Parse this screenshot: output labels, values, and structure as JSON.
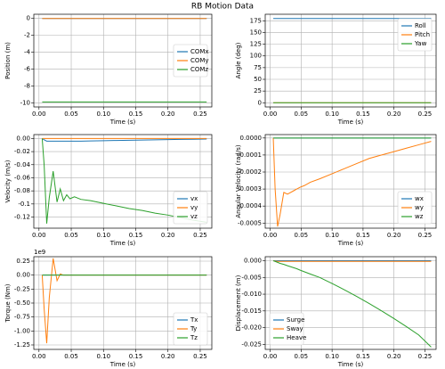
{
  "title": "RB Motion Data",
  "chart_data": [
    {
      "type": "line",
      "ylabel": "Position (m)",
      "xlabel": "Time (s)",
      "legend": "center right",
      "grid": true,
      "xlim": [
        -0.008,
        0.268
      ],
      "xticks": [
        {
          "value": 0,
          "label": "0.00"
        },
        {
          "value": 0.05,
          "label": "0.05"
        },
        {
          "value": 0.1,
          "label": "0.10"
        },
        {
          "value": 0.15,
          "label": "0.15"
        },
        {
          "value": 0.2,
          "label": "0.20"
        },
        {
          "value": 0.25,
          "label": "0.25"
        }
      ],
      "ylim": [
        -10.5,
        0.5
      ],
      "yticks": [
        -10,
        -8,
        -6,
        -4,
        -2,
        0
      ],
      "x": [
        0.005,
        0.008,
        0.012,
        0.016,
        0.022,
        0.028,
        0.033,
        0.038,
        0.043,
        0.048,
        0.055,
        0.065,
        0.08,
        0.1,
        0.12,
        0.14,
        0.16,
        0.18,
        0.2,
        0.22,
        0.24,
        0.26
      ],
      "series": [
        {
          "name": "COMx",
          "color": "#1f77b4",
          "values": [
            0,
            0,
            0,
            0,
            0,
            0,
            0,
            0,
            0,
            0,
            0,
            0,
            0,
            0,
            0,
            0,
            0,
            0,
            0,
            0,
            0,
            0
          ]
        },
        {
          "name": "COMy",
          "color": "#ff7f0e",
          "values": [
            0,
            0,
            0,
            0,
            0,
            0,
            0,
            0,
            0,
            0,
            0,
            0,
            0,
            0,
            0,
            0,
            0,
            0,
            0,
            0,
            0,
            0
          ]
        },
        {
          "name": "COMz",
          "color": "#2ca02c",
          "values": [
            -9.9,
            -9.9,
            -9.9,
            -9.9,
            -9.9,
            -9.9,
            -9.9,
            -9.9,
            -9.9,
            -9.9,
            -9.9,
            -9.9,
            -9.9,
            -9.9,
            -9.9,
            -9.9,
            -9.9,
            -9.9,
            -9.9,
            -9.9,
            -9.9,
            -9.9
          ]
        }
      ]
    },
    {
      "type": "line",
      "ylabel": "Angle (deg)",
      "xlabel": "Time (s)",
      "legend": "upper right",
      "grid": true,
      "xlim": [
        -0.008,
        0.268
      ],
      "xticks": [
        {
          "value": 0,
          "label": "0.00"
        },
        {
          "value": 0.05,
          "label": "0.05"
        },
        {
          "value": 0.1,
          "label": "0.10"
        },
        {
          "value": 0.15,
          "label": "0.15"
        },
        {
          "value": 0.2,
          "label": "0.20"
        },
        {
          "value": 0.25,
          "label": "0.25"
        }
      ],
      "ylim": [
        -9,
        189
      ],
      "yticks": [
        0,
        25,
        50,
        75,
        100,
        125,
        150,
        175
      ],
      "x": [
        0.005,
        0.008,
        0.012,
        0.016,
        0.022,
        0.028,
        0.033,
        0.038,
        0.043,
        0.048,
        0.055,
        0.065,
        0.08,
        0.1,
        0.12,
        0.14,
        0.16,
        0.18,
        0.2,
        0.22,
        0.24,
        0.26
      ],
      "series": [
        {
          "name": "Roll",
          "color": "#1f77b4",
          "values": [
            180,
            180,
            180,
            180,
            180,
            180,
            180,
            180,
            180,
            180,
            180,
            180,
            180,
            180,
            180,
            180,
            180,
            180,
            180,
            180,
            180,
            180
          ]
        },
        {
          "name": "Pitch",
          "color": "#ff7f0e",
          "values": [
            0,
            0,
            0,
            0,
            0,
            0,
            0,
            0,
            0,
            0,
            0,
            0,
            0,
            0,
            0,
            0,
            0,
            0,
            0,
            0,
            0,
            0
          ]
        },
        {
          "name": "Yaw",
          "color": "#2ca02c",
          "values": [
            0,
            0,
            0,
            0,
            0,
            0,
            0,
            0,
            0,
            0,
            0,
            0,
            0,
            0,
            0,
            0,
            0,
            0,
            0,
            0,
            0,
            0
          ]
        }
      ]
    },
    {
      "type": "line",
      "ylabel": "Velocity (m/s)",
      "xlabel": "Time (s)",
      "legend": "lower right",
      "grid": true,
      "xlim": [
        -0.008,
        0.268
      ],
      "xticks": [
        {
          "value": 0,
          "label": "0.00"
        },
        {
          "value": 0.05,
          "label": "0.05"
        },
        {
          "value": 0.1,
          "label": "0.10"
        },
        {
          "value": 0.15,
          "label": "0.15"
        },
        {
          "value": 0.2,
          "label": "0.20"
        },
        {
          "value": 0.25,
          "label": "0.25"
        }
      ],
      "ylim": [
        -0.137,
        0.006
      ],
      "yticks": [
        -0.12,
        -0.1,
        -0.08,
        -0.06,
        -0.04,
        -0.02,
        {
          "value": 0,
          "label": "0.00"
        }
      ],
      "x": [
        0.005,
        0.008,
        0.012,
        0.016,
        0.022,
        0.028,
        0.033,
        0.038,
        0.043,
        0.048,
        0.055,
        0.065,
        0.08,
        0.1,
        0.12,
        0.14,
        0.16,
        0.18,
        0.2,
        0.22,
        0.24,
        0.26
      ],
      "series": [
        {
          "name": "vx",
          "color": "#1f77b4",
          "values": [
            0,
            -0.002,
            -0.004,
            -0.004,
            -0.004,
            -0.004,
            -0.004,
            -0.004,
            -0.004,
            -0.004,
            -0.004,
            -0.004,
            -0.0037,
            -0.0034,
            -0.003,
            -0.0027,
            -0.0024,
            -0.002,
            -0.0017,
            -0.0014,
            -0.0011,
            -0.0008
          ]
        },
        {
          "name": "vy",
          "color": "#ff7f0e",
          "values": [
            0,
            0,
            0,
            0,
            0,
            0,
            0,
            0,
            0,
            0,
            0,
            0,
            0,
            0,
            0,
            0,
            0,
            0,
            0,
            0,
            0,
            0
          ]
        },
        {
          "name": "vz",
          "color": "#2ca02c",
          "values": [
            0,
            -0.04,
            -0.13,
            -0.09,
            -0.05,
            -0.097,
            -0.077,
            -0.095,
            -0.086,
            -0.092,
            -0.089,
            -0.093,
            -0.095,
            -0.099,
            -0.103,
            -0.107,
            -0.11,
            -0.114,
            -0.117,
            -0.121,
            -0.125,
            -0.128
          ]
        }
      ]
    },
    {
      "type": "line",
      "ylabel": "Angular Velocity (rad/s)",
      "xlabel": "Time (s)",
      "legend": "lower right",
      "grid": true,
      "xlim": [
        -0.008,
        0.268
      ],
      "xticks": [
        {
          "value": 0,
          "label": "0.00"
        },
        {
          "value": 0.05,
          "label": "0.05"
        },
        {
          "value": 0.1,
          "label": "0.10"
        },
        {
          "value": 0.15,
          "label": "0.15"
        },
        {
          "value": 0.2,
          "label": "0.20"
        },
        {
          "value": 0.25,
          "label": "0.25"
        }
      ],
      "ylim": [
        -0.00053,
        2e-05
      ],
      "yticks": [
        {
          "value": -0.0005,
          "label": "-0.0005"
        },
        {
          "value": -0.0004,
          "label": "-0.0004"
        },
        {
          "value": -0.0003,
          "label": "-0.0003"
        },
        {
          "value": -0.0002,
          "label": "-0.0002"
        },
        {
          "value": -0.0001,
          "label": "-0.0001"
        },
        {
          "value": 0,
          "label": "0.0000"
        }
      ],
      "x": [
        0.005,
        0.008,
        0.012,
        0.016,
        0.022,
        0.028,
        0.033,
        0.038,
        0.043,
        0.048,
        0.055,
        0.065,
        0.08,
        0.1,
        0.12,
        0.14,
        0.16,
        0.18,
        0.2,
        0.22,
        0.24,
        0.26
      ],
      "series": [
        {
          "name": "wx",
          "color": "#1f77b4",
          "values": [
            0,
            0,
            0,
            0,
            0,
            0,
            0,
            0,
            0,
            0,
            0,
            0,
            0,
            0,
            0,
            0,
            0,
            0,
            0,
            0,
            0,
            0
          ]
        },
        {
          "name": "wy",
          "color": "#ff7f0e",
          "values": [
            0,
            -0.0003,
            -0.00052,
            -0.00045,
            -0.00032,
            -0.00033,
            -0.00032,
            -0.00031,
            -0.0003,
            -0.00029,
            -0.00028,
            -0.00026,
            -0.00024,
            -0.00021,
            -0.00018,
            -0.00015,
            -0.00012,
            -0.0001,
            -8e-05,
            -6e-05,
            -4e-05,
            -2e-05
          ]
        },
        {
          "name": "wz",
          "color": "#2ca02c",
          "values": [
            0,
            0,
            0,
            0,
            0,
            0,
            0,
            0,
            0,
            0,
            0,
            0,
            0,
            0,
            0,
            0,
            0,
            0,
            0,
            0,
            0,
            0
          ]
        }
      ]
    },
    {
      "type": "line",
      "ylabel": "Torque (Nm)",
      "xlabel": "Time (s)",
      "offset_text": "1e9",
      "legend": "lower right",
      "grid": true,
      "xlim": [
        -0.008,
        0.268
      ],
      "xticks": [
        {
          "value": 0,
          "label": "0.00"
        },
        {
          "value": 0.05,
          "label": "0.05"
        },
        {
          "value": 0.1,
          "label": "0.10"
        },
        {
          "value": 0.15,
          "label": "0.15"
        },
        {
          "value": 0.2,
          "label": "0.20"
        },
        {
          "value": 0.25,
          "label": "0.25"
        }
      ],
      "ylim": [
        -1.33,
        0.33
      ],
      "yticks": [
        -1.25,
        {
          "value": -1,
          "label": "-1.00"
        },
        -0.75,
        {
          "value": -0.5,
          "label": "-0.50"
        },
        -0.25,
        {
          "value": 0,
          "label": "0.00"
        },
        0.25
      ],
      "x": [
        0.005,
        0.008,
        0.012,
        0.016,
        0.022,
        0.028,
        0.033,
        0.038,
        0.043,
        0.048,
        0.055,
        0.065,
        0.08,
        0.1,
        0.12,
        0.14,
        0.16,
        0.18,
        0.2,
        0.22,
        0.24,
        0.26
      ],
      "series": [
        {
          "name": "Tx",
          "color": "#1f77b4",
          "values": [
            0,
            0,
            0,
            0,
            0,
            0,
            0,
            0,
            0,
            0,
            0,
            0,
            0,
            0,
            0,
            0,
            0,
            0,
            0,
            0,
            0,
            0
          ]
        },
        {
          "name": "Ty",
          "color": "#ff7f0e",
          "values": [
            0,
            -0.6,
            -1.22,
            -0.4,
            0.3,
            -0.1,
            0.02,
            0,
            0,
            0,
            0,
            0,
            0,
            0,
            0,
            0,
            0,
            0,
            0,
            0,
            0,
            0
          ]
        },
        {
          "name": "Tz",
          "color": "#2ca02c",
          "values": [
            0,
            0,
            0,
            0,
            0,
            0,
            0,
            0,
            0,
            0,
            0,
            0,
            0,
            0,
            0,
            0,
            0,
            0,
            0,
            0,
            0,
            0
          ]
        }
      ]
    },
    {
      "type": "line",
      "ylabel": "Displacement (m)",
      "xlabel": "Time (s)",
      "legend": "lower left",
      "grid": true,
      "xlim": [
        -0.008,
        0.268
      ],
      "xticks": [
        {
          "value": 0,
          "label": "0.00"
        },
        {
          "value": 0.05,
          "label": "0.05"
        },
        {
          "value": 0.1,
          "label": "0.10"
        },
        {
          "value": 0.15,
          "label": "0.15"
        },
        {
          "value": 0.2,
          "label": "0.20"
        },
        {
          "value": 0.25,
          "label": "0.25"
        }
      ],
      "ylim": [
        -0.0265,
        0.0012
      ],
      "yticks": [
        -0.025,
        {
          "value": -0.02,
          "label": "-0.020"
        },
        -0.015,
        {
          "value": -0.01,
          "label": "-0.010"
        },
        -0.005,
        {
          "value": 0,
          "label": "0.000"
        }
      ],
      "x": [
        0.005,
        0.008,
        0.012,
        0.016,
        0.022,
        0.028,
        0.033,
        0.038,
        0.043,
        0.048,
        0.055,
        0.065,
        0.08,
        0.1,
        0.12,
        0.14,
        0.16,
        0.18,
        0.2,
        0.22,
        0.24,
        0.26
      ],
      "series": [
        {
          "name": "Surge",
          "color": "#1f77b4",
          "values": [
            0,
            0,
            0,
            0,
            0,
            0,
            0,
            0,
            0,
            0,
            0,
            0,
            0,
            0,
            0,
            0,
            0,
            0,
            0,
            0,
            0,
            0
          ]
        },
        {
          "name": "Sway",
          "color": "#ff7f0e",
          "values": [
            0,
            -0.0001,
            -0.0002,
            -0.0002,
            -0.0002,
            -0.0002,
            -0.0002,
            -0.0002,
            -0.0002,
            -0.0002,
            -0.0002,
            -0.0002,
            -0.0002,
            -0.0002,
            -0.0002,
            -0.0002,
            -0.0002,
            -0.0002,
            -0.0002,
            -0.0002,
            -0.0002,
            -0.0002
          ]
        },
        {
          "name": "Heave",
          "color": "#2ca02c",
          "values": [
            0,
            -0.0002,
            -0.0005,
            -0.0008,
            -0.0011,
            -0.0015,
            -0.0018,
            -0.0021,
            -0.0024,
            -0.0028,
            -0.0033,
            -0.004,
            -0.005,
            -0.0068,
            -0.0087,
            -0.0107,
            -0.0128,
            -0.015,
            -0.0173,
            -0.0197,
            -0.0222,
            -0.0258
          ]
        }
      ]
    }
  ]
}
